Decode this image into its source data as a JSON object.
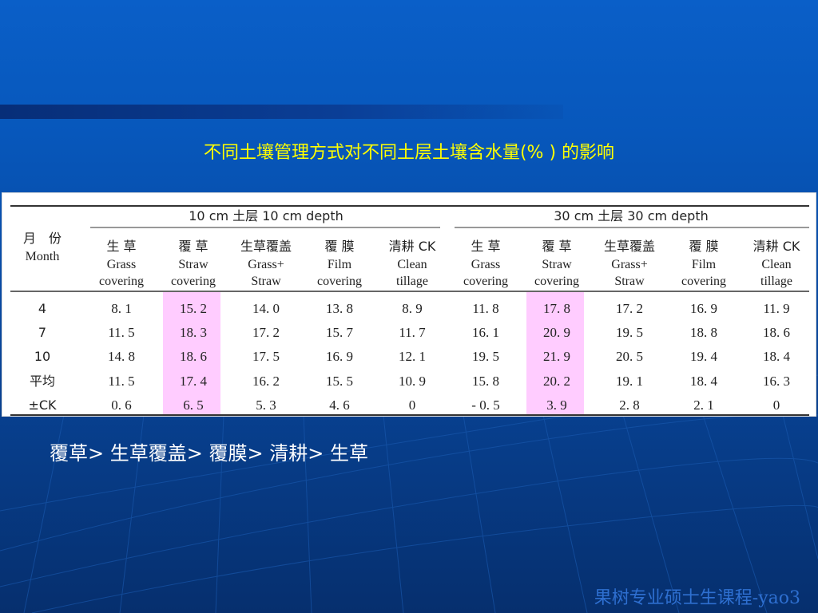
{
  "slide": {
    "title": "不同土壤管理方式对不同土层土壤含水量(% ) 的影响",
    "conclusion": "覆草> 生草覆盖> 覆膜> 清耕> 生草",
    "footer": "果树专业硕士生课程-yao3"
  },
  "table": {
    "month_header_zh": "月　份",
    "month_header_en": "Month",
    "groups": [
      {
        "label": "10 cm  土层 10 cm depth"
      },
      {
        "label": "30 cm  土层 30 cm depth"
      }
    ],
    "columns": [
      {
        "zh": "生 草",
        "en1": "Grass",
        "en2": "covering"
      },
      {
        "zh": "覆 草",
        "en1": "Straw",
        "en2": "covering"
      },
      {
        "zh": "生草覆盖",
        "en1": "Grass+",
        "en2": "Straw"
      },
      {
        "zh": "覆 膜",
        "en1": "Film",
        "en2": "covering"
      },
      {
        "zh": "清耕 CK",
        "en1": "Clean",
        "en2": "tillage"
      },
      {
        "zh": "生 草",
        "en1": "Grass",
        "en2": "covering"
      },
      {
        "zh": "覆 草",
        "en1": "Straw",
        "en2": "covering"
      },
      {
        "zh": "生草覆盖",
        "en1": "Grass+",
        "en2": "Straw"
      },
      {
        "zh": "覆 膜",
        "en1": "Film",
        "en2": "covering"
      },
      {
        "zh": "清耕 CK",
        "en1": "Clean",
        "en2": "tillage"
      }
    ],
    "highlight_color": "#ffccff",
    "rows": [
      {
        "label": "4",
        "values": [
          "8. 1",
          "15. 2",
          "14. 0",
          "13. 8",
          "8. 9",
          "11. 8",
          "17. 8",
          "17. 2",
          "16. 9",
          "11. 9"
        ]
      },
      {
        "label": "7",
        "values": [
          "11. 5",
          "18. 3",
          "17. 2",
          "15. 7",
          "11. 7",
          "16. 1",
          "20. 9",
          "19. 5",
          "18. 8",
          "18. 6"
        ]
      },
      {
        "label": "10",
        "values": [
          "14. 8",
          "18. 6",
          "17. 5",
          "16. 9",
          "12. 1",
          "19. 5",
          "21. 9",
          "20. 5",
          "19. 4",
          "18. 4"
        ]
      },
      {
        "label": "平均",
        "values": [
          "11. 5",
          "17. 4",
          "16. 2",
          "15. 5",
          "10. 9",
          "15. 8",
          "20. 2",
          "19. 1",
          "18. 4",
          "16. 3"
        ]
      },
      {
        "label": "±CK",
        "values": [
          "0. 6",
          "6. 5",
          "5. 3",
          "4. 6",
          "0",
          "- 0. 5",
          "3. 9",
          "2. 8",
          "2. 1",
          "0"
        ]
      }
    ]
  }
}
